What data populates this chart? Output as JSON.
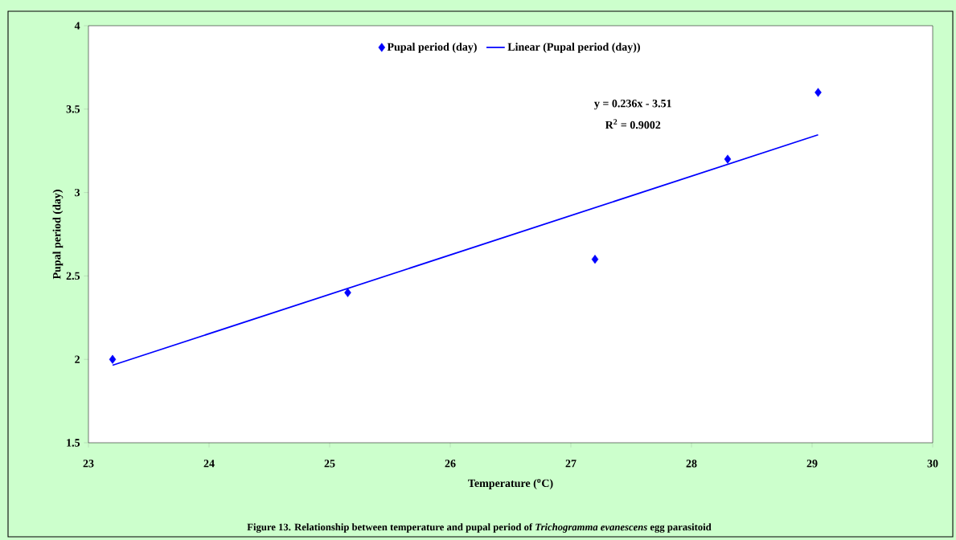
{
  "chart_data": {
    "type": "scatter",
    "xlabel": "Temperature ($^{o}$C)",
    "ylabel": "Pupal period (day)",
    "xlim": [
      23,
      30
    ],
    "xticks": [
      23,
      24,
      25,
      26,
      27,
      28,
      29,
      30
    ],
    "ylim": [
      1.5,
      4
    ],
    "yticks": [
      1.5,
      2,
      2.5,
      3,
      3.5,
      4
    ],
    "legend": "top",
    "series": [
      {
        "name": "Pupal period (day)",
        "marker": "diamond",
        "color": "#0000ff",
        "x": [
          23.2,
          25.15,
          27.2,
          28.3,
          29.05
        ],
        "values": [
          2.0,
          2.4,
          2.6,
          3.2,
          3.6
        ]
      },
      {
        "name": "Linear (Pupal period (day))",
        "type": "line",
        "marker": "none",
        "line_style": "solid",
        "color": "#0000ff",
        "x": [
          23.2,
          29.05
        ],
        "values": [
          1.965,
          3.346
        ]
      }
    ],
    "annotations": [
      "y = 0.236x - 3.51",
      "R$^{2}$ = 0.9002",
      "Figure 13. Relationship between temperature and pupal period of *Trichogramma evanescens* egg parasitoid"
    ]
  }
}
